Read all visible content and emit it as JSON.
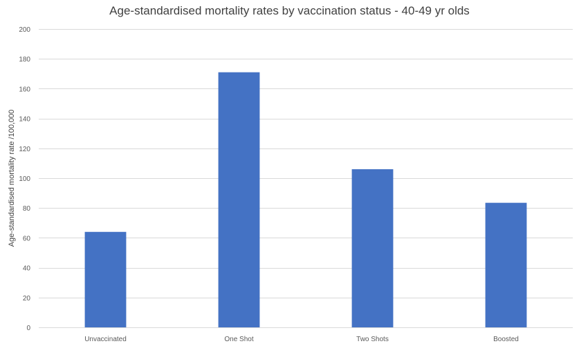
{
  "chart_data": {
    "type": "bar",
    "title": "Age-standardised mortality rates by vaccination status - 40-49 yr olds",
    "ylabel": "Age-standardised mortality rate /100,000",
    "xlabel": "",
    "categories": [
      "Unvaccinated",
      "One Shot",
      "Two Shots",
      "Boosted"
    ],
    "values": [
      64,
      171,
      106,
      83.5
    ],
    "ylim": [
      0,
      200
    ],
    "yticks": [
      0,
      20,
      40,
      60,
      80,
      100,
      120,
      140,
      160,
      180,
      200
    ],
    "grid": true,
    "legend": "none",
    "bar_color": "#4472c4"
  }
}
